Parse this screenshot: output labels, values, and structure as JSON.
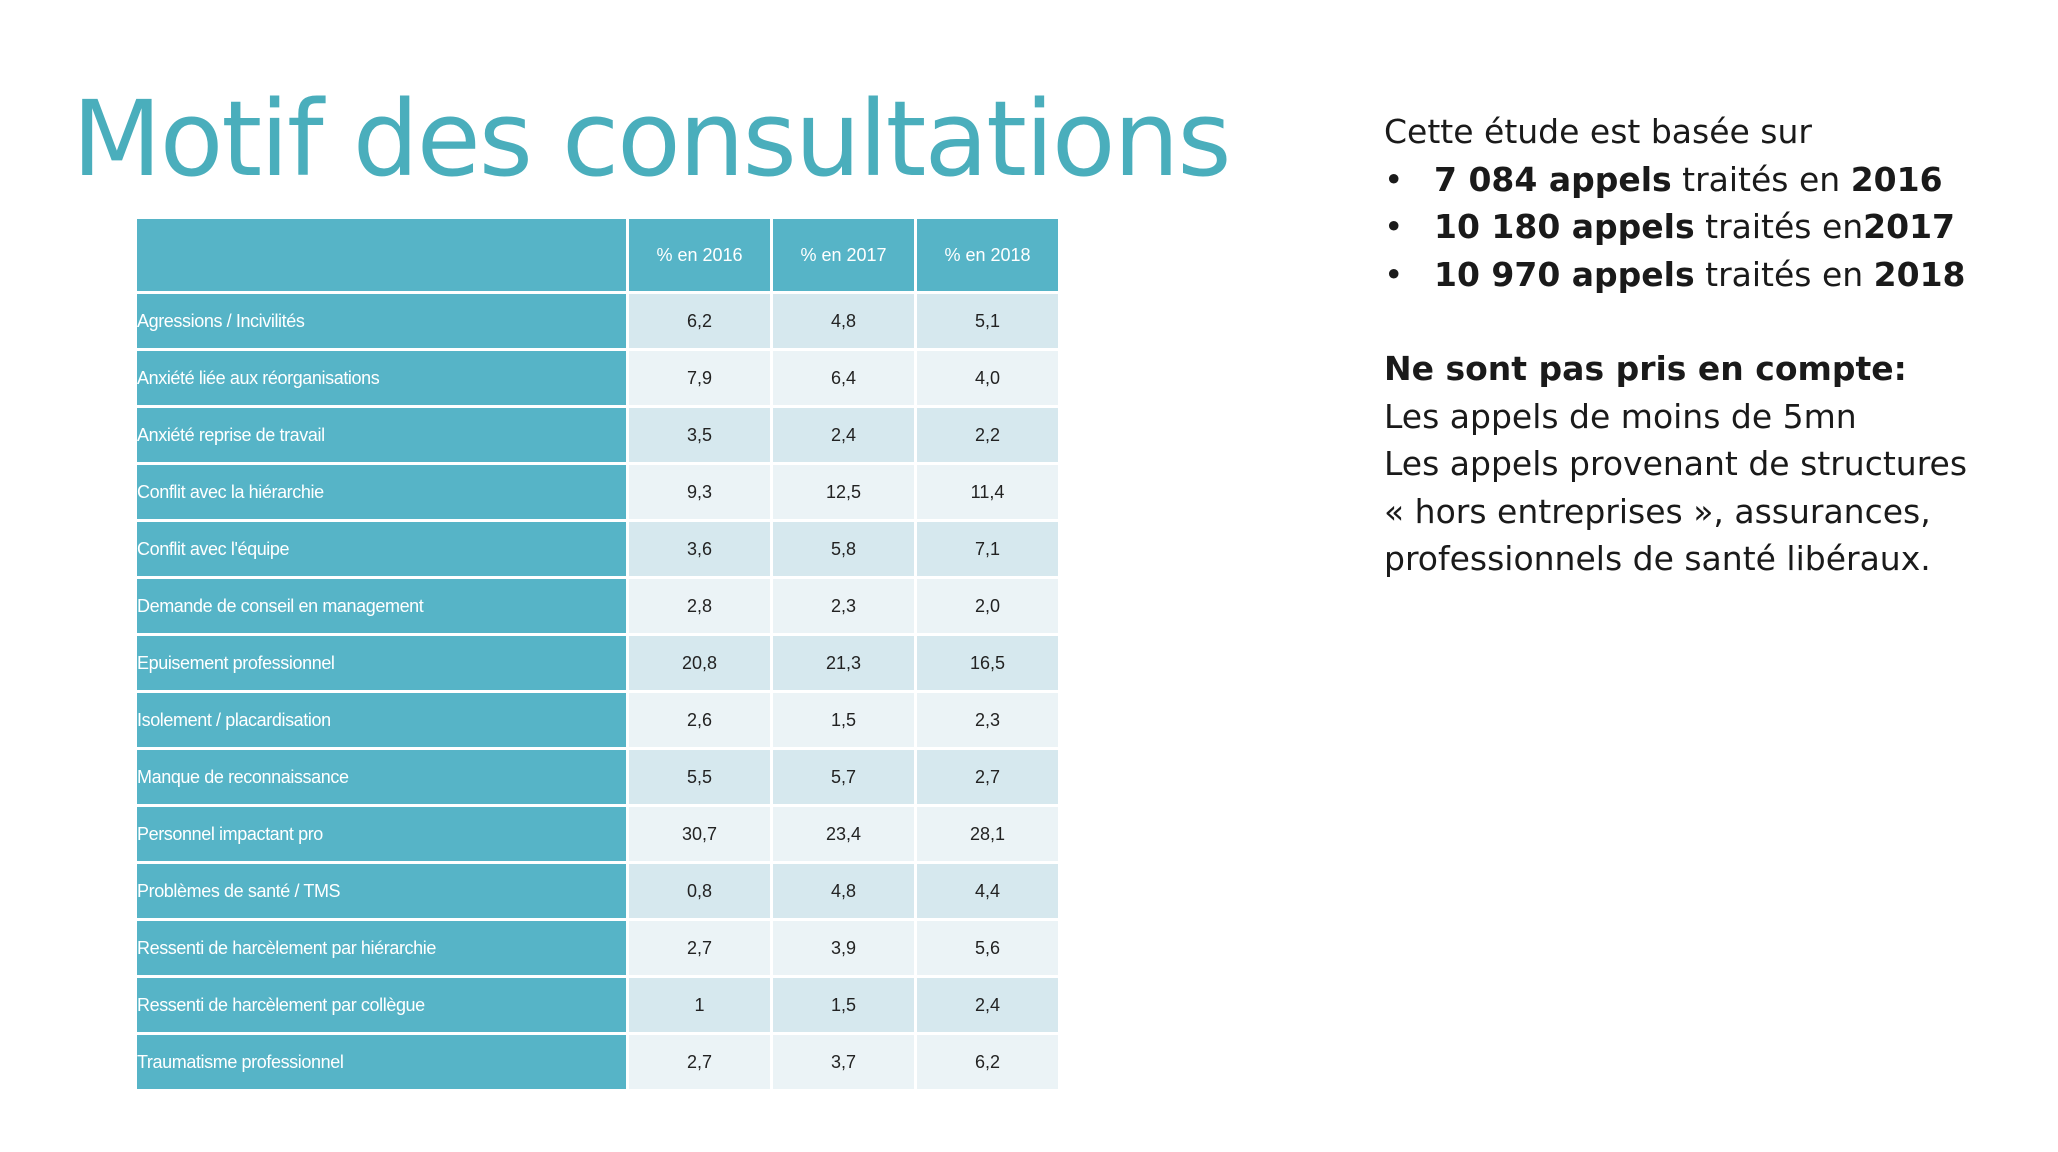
{
  "title": "Motif des consultations",
  "table": {
    "columns": [
      "% en 2016",
      "% en 2017",
      "% en 2018"
    ],
    "rows": [
      {
        "label": "Agressions / Incivilités",
        "values": [
          "6,2",
          "4,8",
          "5,1"
        ]
      },
      {
        "label": "Anxiété liée aux réorganisations",
        "values": [
          "7,9",
          "6,4",
          "4,0"
        ]
      },
      {
        "label": "Anxiété reprise de travail",
        "values": [
          "3,5",
          "2,4",
          "2,2"
        ]
      },
      {
        "label": "Conflit avec la hiérarchie",
        "values": [
          "9,3",
          "12,5",
          "11,4"
        ]
      },
      {
        "label": "Conflit avec l'équipe",
        "values": [
          "3,6",
          "5,8",
          "7,1"
        ]
      },
      {
        "label": "Demande de conseil en management",
        "values": [
          "2,8",
          "2,3",
          "2,0"
        ]
      },
      {
        "label": "Epuisement professionnel",
        "values": [
          "20,8",
          "21,3",
          "16,5"
        ]
      },
      {
        "label": "Isolement / placardisation",
        "values": [
          "2,6",
          "1,5",
          "2,3"
        ]
      },
      {
        "label": "Manque de reconnaissance",
        "values": [
          "5,5",
          "5,7",
          "2,7"
        ]
      },
      {
        "label": "Personnel impactant pro",
        "values": [
          "30,7",
          "23,4",
          "28,1"
        ]
      },
      {
        "label": "Problèmes de santé / TMS",
        "values": [
          "0,8",
          "4,8",
          "4,4"
        ]
      },
      {
        "label": "Ressenti de harcèlement par hiérarchie",
        "values": [
          "2,7",
          "3,9",
          "5,6"
        ]
      },
      {
        "label": "Ressenti de harcèlement par collègue",
        "values": [
          "1",
          "1,5",
          "2,4"
        ]
      },
      {
        "label": "Traumatisme professionnel",
        "values": [
          "2,7",
          "3,7",
          "6,2"
        ]
      }
    ]
  },
  "info": {
    "intro": "Cette étude est basée sur",
    "bullet_char": "•",
    "bullets": [
      {
        "number": "7 084 appels",
        "middle": " traités en ",
        "year": "2016"
      },
      {
        "number": "10 180 appels",
        "middle": " traités en",
        "year": "2017"
      },
      {
        "number": "10 970 appels",
        "middle": " traités en ",
        "year": "2018"
      }
    ],
    "heading": "Ne sont pas pris en compte:",
    "lines": [
      "Les appels de moins de 5mn",
      "Les appels provenant de structures",
      "« hors entreprises », assurances,",
      "professionnels de santé libéraux."
    ]
  },
  "colors": {
    "title": "#4aaebc",
    "header_fill": "#56b4c7",
    "cell_dark": "#d6e8ee",
    "cell_light": "#ebf3f6"
  }
}
